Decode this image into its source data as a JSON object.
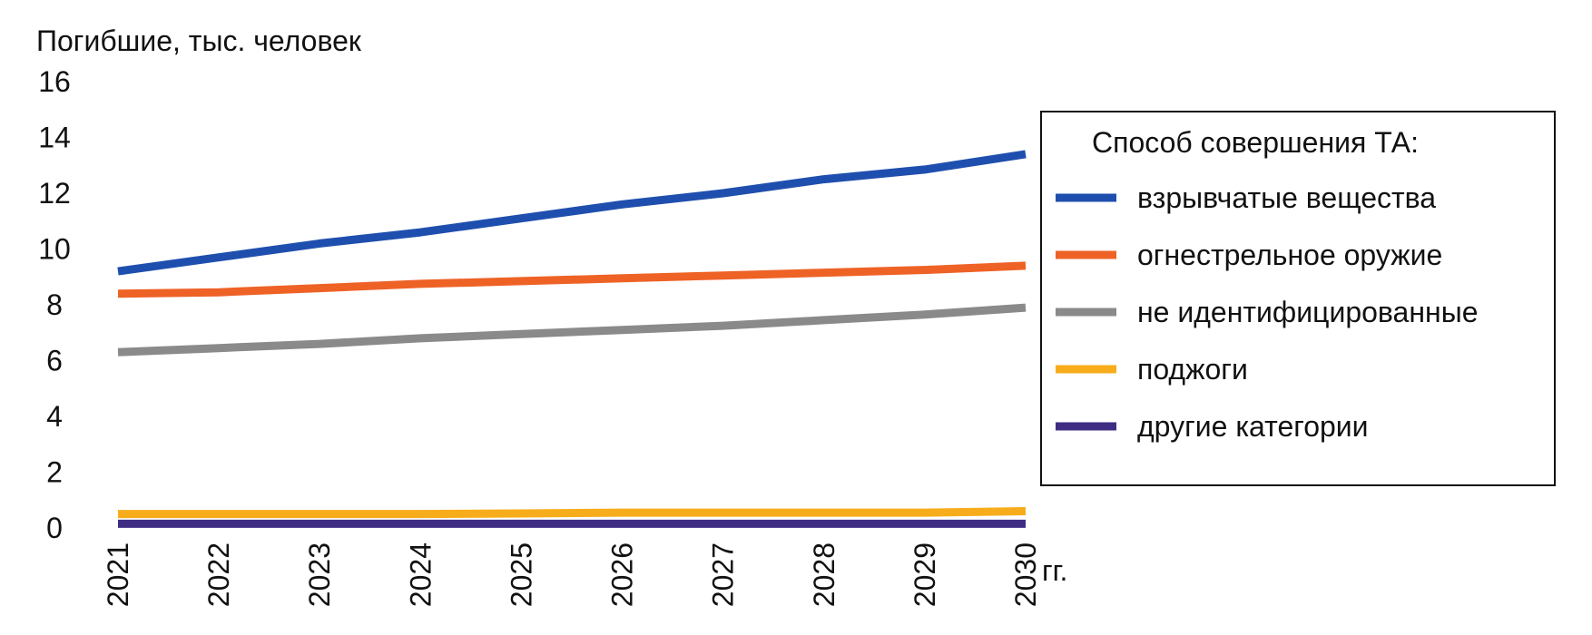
{
  "chart_data": {
    "type": "line",
    "ylabel": "Погибшие, тыс. человек",
    "xlabel": "гг.",
    "ylim": [
      0,
      16
    ],
    "yticks": [
      "0",
      "2",
      "4",
      "6",
      "8",
      "10",
      "12",
      "14",
      "16"
    ],
    "x": [
      "2021",
      "2022",
      "2023",
      "2024",
      "2025",
      "2026",
      "2027",
      "2028",
      "2029",
      "2030"
    ],
    "grid": false,
    "legend_title": "Способ  совершения ТА:",
    "legend_position": "right",
    "series": [
      {
        "name": "взрывчатые вещества",
        "color": "#1f4fae",
        "values": [
          9.2,
          9.7,
          10.2,
          10.6,
          11.1,
          11.6,
          12.0,
          12.5,
          12.85,
          13.4
        ]
      },
      {
        "name": "огнестрельное  оружие",
        "color": "#ee6226",
        "values": [
          8.4,
          8.45,
          8.6,
          8.75,
          8.85,
          8.95,
          9.05,
          9.15,
          9.25,
          9.4
        ]
      },
      {
        "name": "не идентифицированные",
        "color": "#8a8a8a",
        "values": [
          6.3,
          6.45,
          6.6,
          6.8,
          6.95,
          7.1,
          7.25,
          7.45,
          7.65,
          7.9
        ]
      },
      {
        "name": "поджоги",
        "color": "#f7ad1b",
        "values": [
          0.5,
          0.5,
          0.5,
          0.5,
          0.52,
          0.55,
          0.55,
          0.55,
          0.55,
          0.6
        ]
      },
      {
        "name": "другие категории",
        "color": "#3e2d82",
        "values": [
          0.15,
          0.15,
          0.15,
          0.15,
          0.15,
          0.15,
          0.15,
          0.15,
          0.15,
          0.15
        ]
      }
    ]
  }
}
